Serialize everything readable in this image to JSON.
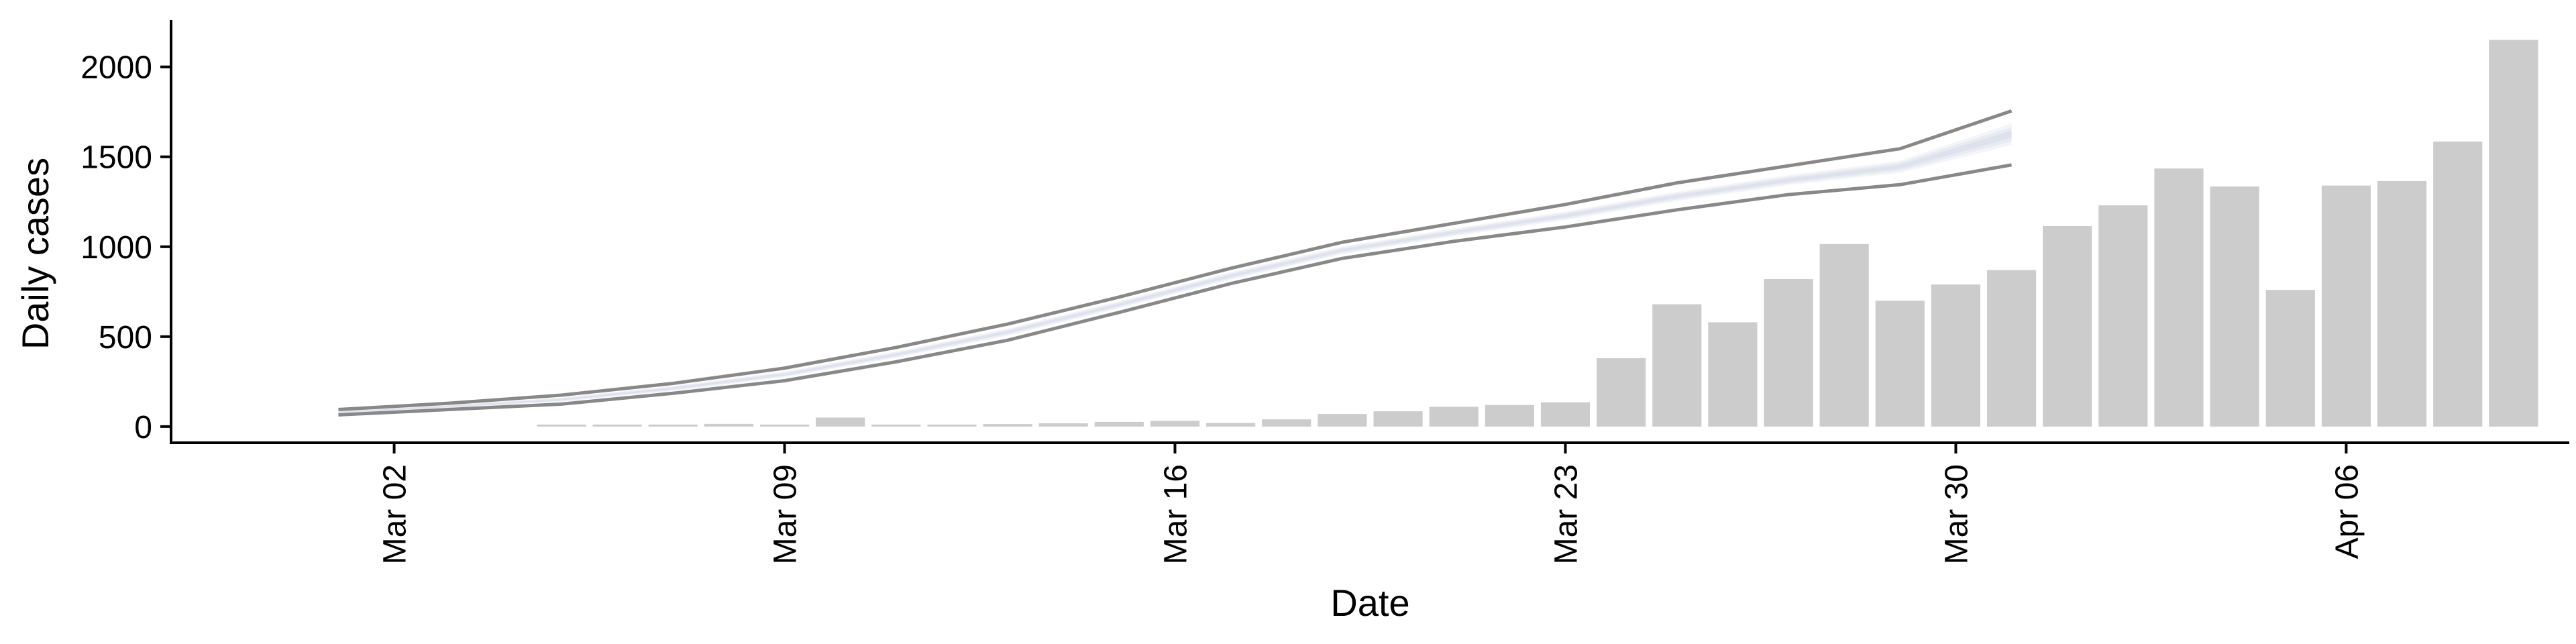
{
  "chart_data": {
    "type": "bar",
    "title": "",
    "xlabel": "Date",
    "ylabel": "Daily cases",
    "ylim": [
      -90,
      2260
    ],
    "xlim": [
      "2020-02-27",
      "2020-04-10"
    ],
    "x_ticks": [
      {
        "date": "2020-03-02",
        "label": "Mar 02"
      },
      {
        "date": "2020-03-09",
        "label": "Mar 09"
      },
      {
        "date": "2020-03-16",
        "label": "Mar 16"
      },
      {
        "date": "2020-03-23",
        "label": "Mar 23"
      },
      {
        "date": "2020-03-30",
        "label": "Mar 30"
      },
      {
        "date": "2020-04-06",
        "label": "Apr 06"
      }
    ],
    "y_ticks": [
      0,
      500,
      1000,
      1500,
      2000
    ],
    "grid": false,
    "legend": "none",
    "bars": {
      "name": "",
      "color": "#cccccc",
      "x": [
        "2020-03-05",
        "2020-03-06",
        "2020-03-07",
        "2020-03-08",
        "2020-03-09",
        "2020-03-10",
        "2020-03-11",
        "2020-03-12",
        "2020-03-13",
        "2020-03-14",
        "2020-03-15",
        "2020-03-16",
        "2020-03-17",
        "2020-03-18",
        "2020-03-19",
        "2020-03-20",
        "2020-03-21",
        "2020-03-22",
        "2020-03-23",
        "2020-03-24",
        "2020-03-25",
        "2020-03-26",
        "2020-03-27",
        "2020-03-28",
        "2020-03-29",
        "2020-03-30",
        "2020-03-31",
        "2020-04-01",
        "2020-04-02",
        "2020-04-03",
        "2020-04-04",
        "2020-04-05",
        "2020-04-06",
        "2020-04-07",
        "2020-04-08",
        "2020-04-09"
      ],
      "values": [
        3,
        6,
        10,
        15,
        8,
        50,
        4,
        10,
        14,
        18,
        26,
        32,
        20,
        40,
        70,
        85,
        110,
        120,
        135,
        380,
        680,
        580,
        820,
        1015,
        700,
        790,
        870,
        1115,
        1230,
        1435,
        1335,
        760,
        1340,
        1365,
        1585,
        2150
      ]
    },
    "line_series": [
      {
        "name": "",
        "color": "#888888",
        "x": [
          "2020-03-01",
          "2020-03-03",
          "2020-03-05",
          "2020-03-07",
          "2020-03-09",
          "2020-03-11",
          "2020-03-13",
          "2020-03-15",
          "2020-03-17",
          "2020-03-19",
          "2020-03-21",
          "2020-03-23",
          "2020-03-25",
          "2020-03-27",
          "2020-03-29",
          "2020-03-31"
        ],
        "values": [
          95,
          130,
          175,
          240,
          325,
          440,
          570,
          720,
          880,
          1025,
          1130,
          1235,
          1355,
          1450,
          1545,
          1755
        ]
      },
      {
        "name": "",
        "color": "#888888",
        "x": [
          "2020-03-01",
          "2020-03-03",
          "2020-03-05",
          "2020-03-07",
          "2020-03-09",
          "2020-03-11",
          "2020-03-13",
          "2020-03-15",
          "2020-03-17",
          "2020-03-19",
          "2020-03-21",
          "2020-03-23",
          "2020-03-25",
          "2020-03-27",
          "2020-03-29",
          "2020-03-31"
        ],
        "values": [
          65,
          95,
          125,
          185,
          255,
          360,
          480,
          635,
          795,
          935,
          1030,
          1110,
          1205,
          1290,
          1345,
          1455
        ]
      }
    ],
    "band": {
      "name": "",
      "color": "#dde1ec",
      "x": [
        "2020-03-01",
        "2020-03-03",
        "2020-03-05",
        "2020-03-07",
        "2020-03-09",
        "2020-03-11",
        "2020-03-13",
        "2020-03-15",
        "2020-03-17",
        "2020-03-19",
        "2020-03-21",
        "2020-03-23",
        "2020-03-25",
        "2020-03-27",
        "2020-03-29",
        "2020-03-31"
      ],
      "mid": [
        80,
        112,
        150,
        212,
        290,
        400,
        525,
        678,
        838,
        980,
        1080,
        1172,
        1280,
        1370,
        1445,
        1625
      ],
      "halfwidth": [
        10,
        10,
        12,
        14,
        16,
        18,
        20,
        20,
        22,
        22,
        22,
        24,
        26,
        28,
        34,
        60
      ]
    }
  }
}
